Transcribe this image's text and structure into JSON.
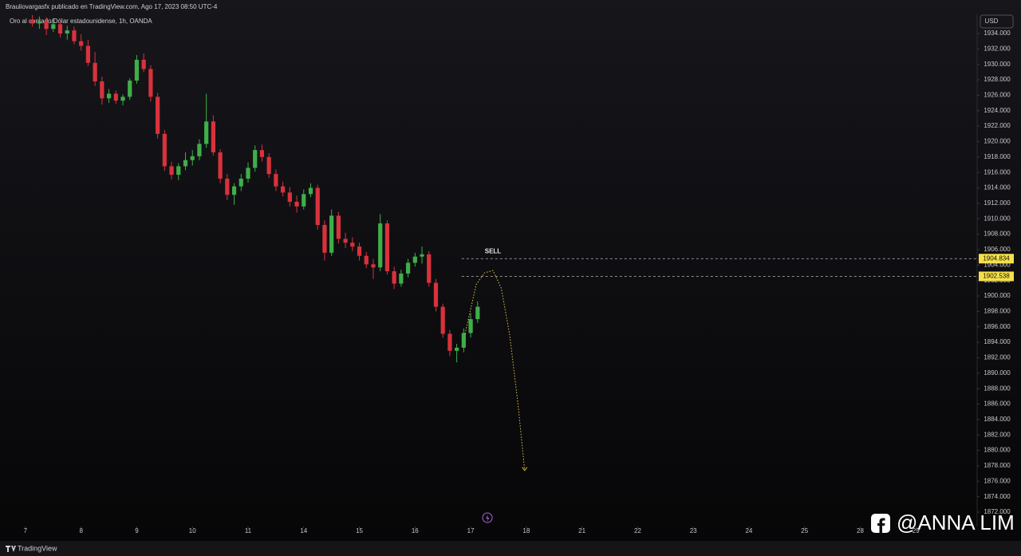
{
  "header": {
    "author_line": "Brauliovargasfx publicado en TradingView.com, Ago 17, 2023 08:50 UTC-4",
    "symbol_line": "Oro al contado/Dólar estadounidense, 1h, OANDA"
  },
  "currency": "USD",
  "footer": "TradingView",
  "watermark": "@ANNA LIM",
  "chart_data": {
    "type": "candlestick",
    "up_color": "#3fae49",
    "down_color": "#d8323c",
    "xlim": [
      -0.4,
      17.1
    ],
    "ylim": [
      1870.14,
      1936.48
    ],
    "xticks": [
      {
        "value": 0,
        "label": "7"
      },
      {
        "value": 1,
        "label": "8"
      },
      {
        "value": 2,
        "label": "9"
      },
      {
        "value": 3,
        "label": "10"
      },
      {
        "value": 4,
        "label": "11"
      },
      {
        "value": 5,
        "label": "14"
      },
      {
        "value": 6,
        "label": "15"
      },
      {
        "value": 7,
        "label": "16"
      },
      {
        "value": 8,
        "label": "17"
      },
      {
        "value": 9,
        "label": "18"
      },
      {
        "value": 10,
        "label": "21"
      },
      {
        "value": 11,
        "label": "22"
      },
      {
        "value": 12,
        "label": "23"
      },
      {
        "value": 13,
        "label": "24"
      },
      {
        "value": 14,
        "label": "25"
      },
      {
        "value": 15,
        "label": "28"
      },
      {
        "value": 16,
        "label": "29"
      }
    ],
    "yticks": [
      {
        "value": 1872,
        "label": "1872.000"
      },
      {
        "value": 1874,
        "label": "1874.000"
      },
      {
        "value": 1876,
        "label": "1876.000"
      },
      {
        "value": 1878,
        "label": "1878.000"
      },
      {
        "value": 1880,
        "label": "1880.000"
      },
      {
        "value": 1882,
        "label": "1882.000"
      },
      {
        "value": 1884,
        "label": "1884.000"
      },
      {
        "value": 1886,
        "label": "1886.000"
      },
      {
        "value": 1888,
        "label": "1888.000"
      },
      {
        "value": 1890,
        "label": "1890.000"
      },
      {
        "value": 1892,
        "label": "1892.000"
      },
      {
        "value": 1894,
        "label": "1894.000"
      },
      {
        "value": 1896,
        "label": "1896.000"
      },
      {
        "value": 1898,
        "label": "1898.000"
      },
      {
        "value": 1900,
        "label": "1900.000"
      },
      {
        "value": 1902,
        "label": "1902.000"
      },
      {
        "value": 1904,
        "label": "1904.000"
      },
      {
        "value": 1906,
        "label": "1906.000"
      },
      {
        "value": 1908,
        "label": "1908.000"
      },
      {
        "value": 1910,
        "label": "1910.000"
      },
      {
        "value": 1912,
        "label": "1912.000"
      },
      {
        "value": 1914,
        "label": "1914.000"
      },
      {
        "value": 1916,
        "label": "1916.000"
      },
      {
        "value": 1918,
        "label": "1918.000"
      },
      {
        "value": 1920,
        "label": "1920.000"
      },
      {
        "value": 1922,
        "label": "1922.000"
      },
      {
        "value": 1924,
        "label": "1924.000"
      },
      {
        "value": 1926,
        "label": "1926.000"
      },
      {
        "value": 1928,
        "label": "1928.000"
      },
      {
        "value": 1930,
        "label": "1930.000"
      },
      {
        "value": 1932,
        "label": "1932.000"
      },
      {
        "value": 1934,
        "label": "1934.000"
      }
    ],
    "x": [
      0.125,
      0.25,
      0.375,
      0.5,
      0.625,
      0.75,
      0.875,
      1.0,
      1.125,
      1.25,
      1.375,
      1.5,
      1.625,
      1.75,
      1.875,
      2.0,
      2.125,
      2.25,
      2.375,
      2.5,
      2.625,
      2.75,
      2.875,
      3.0,
      3.125,
      3.25,
      3.375,
      3.5,
      3.625,
      3.75,
      3.875,
      4.0,
      4.125,
      4.25,
      4.375,
      4.5,
      4.625,
      4.75,
      4.875,
      5.0,
      5.125,
      5.25,
      5.375,
      5.5,
      5.625,
      5.75,
      5.875,
      6.0,
      6.125,
      6.25,
      6.375,
      6.5,
      6.625,
      6.75,
      6.875,
      7.0,
      7.125,
      7.25,
      7.375,
      7.5,
      7.625,
      7.75,
      7.875,
      8.0,
      8.125
    ],
    "open": [
      1935.8,
      1935.3,
      1935.6,
      1934.6,
      1935.2,
      1934.0,
      1934.4,
      1933.0,
      1932.4,
      1930.2,
      1927.8,
      1925.6,
      1926.2,
      1925.3,
      1925.8,
      1927.9,
      1930.6,
      1929.4,
      1925.8,
      1921.0,
      1916.8,
      1915.7,
      1916.8,
      1917.6,
      1918.1,
      1919.7,
      1922.6,
      1918.6,
      1915.2,
      1913.1,
      1914.2,
      1915.2,
      1916.6,
      1918.9,
      1918.0,
      1915.8,
      1914.2,
      1913.4,
      1912.2,
      1911.6,
      1913.2,
      1914.0,
      1909.2,
      1905.6,
      1910.4,
      1907.4,
      1906.9,
      1906.4,
      1905.2,
      1904.1,
      1903.7,
      1909.4,
      1903.2,
      1901.6,
      1902.9,
      1904.3,
      1905.1,
      1905.4,
      1901.7,
      1898.6,
      1895.1,
      1892.9,
      1893.3,
      1895.2,
      1897.0
    ],
    "high": [
      1936.4,
      1936.2,
      1936.1,
      1935.8,
      1935.6,
      1935.0,
      1934.9,
      1933.9,
      1933.2,
      1931.6,
      1928.4,
      1926.8,
      1926.6,
      1926.1,
      1928.2,
      1931.2,
      1931.4,
      1929.9,
      1926.3,
      1921.5,
      1917.4,
      1917.2,
      1918.6,
      1918.9,
      1920.3,
      1926.2,
      1923.4,
      1919.0,
      1915.8,
      1914.6,
      1915.8,
      1917.3,
      1919.5,
      1919.6,
      1918.5,
      1916.4,
      1914.8,
      1914.1,
      1913.0,
      1913.8,
      1914.6,
      1914.4,
      1909.8,
      1911.2,
      1910.9,
      1908.2,
      1907.6,
      1906.9,
      1905.7,
      1904.8,
      1910.6,
      1909.8,
      1903.8,
      1903.4,
      1904.8,
      1905.6,
      1906.4,
      1905.8,
      1902.2,
      1899.0,
      1895.6,
      1893.8,
      1895.8,
      1897.8,
      1899.3
    ],
    "low": [
      1934.9,
      1934.6,
      1933.8,
      1934.2,
      1933.5,
      1933.2,
      1932.6,
      1931.8,
      1929.8,
      1927.2,
      1924.8,
      1925.0,
      1924.9,
      1924.7,
      1925.4,
      1927.5,
      1929.0,
      1925.2,
      1920.4,
      1916.2,
      1915.1,
      1915.0,
      1916.3,
      1916.9,
      1917.6,
      1919.2,
      1918.2,
      1914.6,
      1912.4,
      1911.8,
      1913.6,
      1914.7,
      1916.1,
      1917.4,
      1915.3,
      1913.6,
      1912.9,
      1911.6,
      1910.8,
      1911.2,
      1912.8,
      1908.6,
      1904.6,
      1905.2,
      1906.8,
      1906.2,
      1905.8,
      1904.6,
      1903.6,
      1902.2,
      1903.2,
      1902.8,
      1900.9,
      1901.2,
      1902.4,
      1903.8,
      1904.2,
      1901.2,
      1898.0,
      1894.6,
      1892.2,
      1891.4,
      1892.7,
      1894.6,
      1896.5
    ],
    "close": [
      1935.3,
      1935.6,
      1934.6,
      1935.2,
      1934.0,
      1934.4,
      1933.0,
      1932.4,
      1930.2,
      1927.8,
      1925.6,
      1926.2,
      1925.3,
      1925.8,
      1927.9,
      1930.6,
      1929.4,
      1925.8,
      1921.0,
      1916.8,
      1915.7,
      1916.8,
      1917.6,
      1918.1,
      1919.7,
      1922.6,
      1918.6,
      1915.2,
      1913.1,
      1914.2,
      1915.2,
      1916.6,
      1918.9,
      1918.0,
      1915.8,
      1914.2,
      1913.4,
      1912.2,
      1911.6,
      1913.2,
      1914.0,
      1909.2,
      1905.6,
      1910.4,
      1907.4,
      1906.9,
      1906.4,
      1905.2,
      1904.1,
      1903.7,
      1909.4,
      1903.2,
      1901.6,
      1902.9,
      1904.3,
      1905.1,
      1905.4,
      1901.7,
      1898.6,
      1895.1,
      1892.9,
      1893.3,
      1895.2,
      1897.0,
      1898.6
    ],
    "levels": [
      1904.834,
      1902.538
    ],
    "level_color": "#f5e04a",
    "annotation": "SELL",
    "projection": {
      "color": "#e0c24a",
      "x": [
        7.9,
        8.1,
        8.25,
        8.4,
        8.55,
        8.7,
        8.85,
        8.97
      ],
      "y": [
        1895.1,
        1901.5,
        1903.0,
        1903.3,
        1901.0,
        1895.0,
        1886.0,
        1877.4
      ]
    }
  }
}
